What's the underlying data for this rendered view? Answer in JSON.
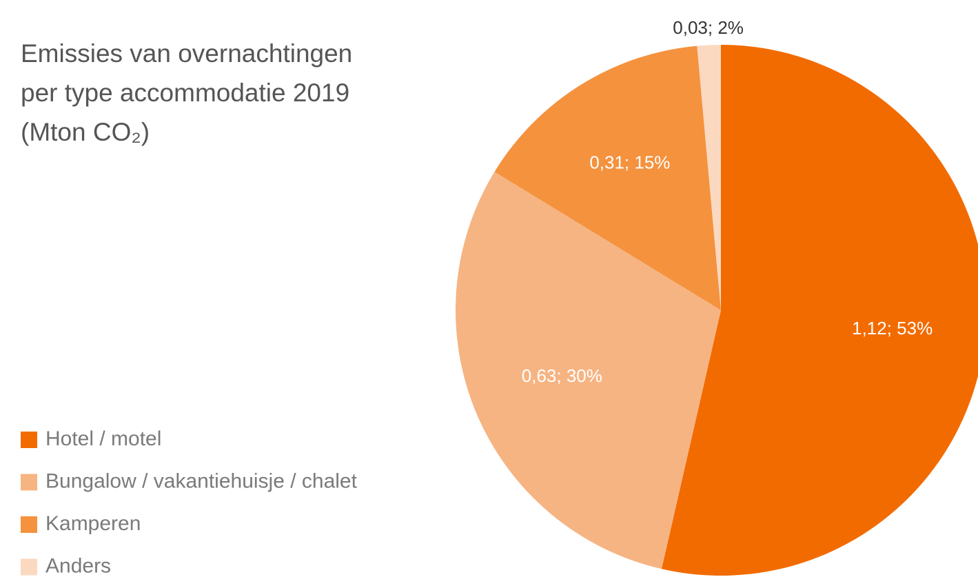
{
  "chart_data": {
    "type": "pie",
    "title": [
      "Emissies van overnachtingen",
      "per type accommodatie 2019",
      "(Mton CO₂)"
    ],
    "categories": [
      "Hotel / motel",
      "Bungalow / vakantiehuisje / chalet",
      "Kamperen",
      "Anders"
    ],
    "values": [
      1.12,
      0.63,
      0.31,
      0.03
    ],
    "value_labels": [
      "1,12; 53%",
      "0,63; 30%",
      "0,31; 15%",
      "0,03; 2%"
    ],
    "colors": [
      "#f26b00",
      "#f6b482",
      "#f4923e",
      "#fbd9c0"
    ],
    "legend": "left"
  }
}
